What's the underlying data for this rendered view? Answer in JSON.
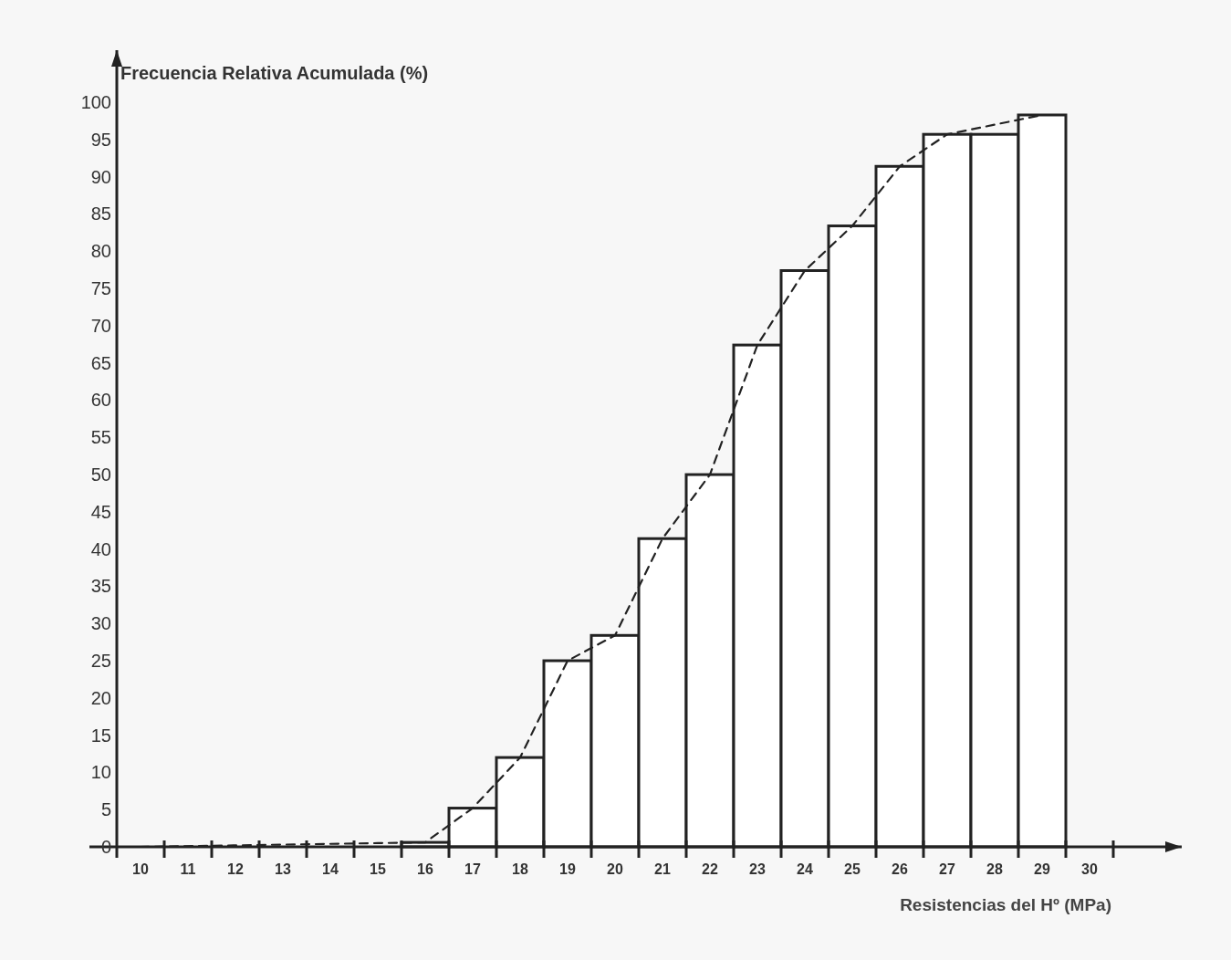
{
  "chart_data": {
    "type": "bar",
    "ylabel": "Frecuencia Relativa Acumulada (%)",
    "xlabel": "Resistencias del Hº (MPa)",
    "categories": [
      "10",
      "11",
      "12",
      "13",
      "14",
      "15",
      "16",
      "17",
      "18",
      "19",
      "20",
      "21",
      "22",
      "23",
      "24",
      "25",
      "26",
      "27",
      "28",
      "29",
      "30"
    ],
    "values": [
      null,
      null,
      null,
      null,
      null,
      null,
      0.6,
      5.2,
      12,
      25,
      28.4,
      41.4,
      50,
      67.4,
      77.4,
      83.4,
      91.4,
      95.7,
      95.7,
      98.3,
      null
    ],
    "color": "#ffffff",
    "series": [
      {
        "type": "line",
        "color": "#222222",
        "line_style": "dashed",
        "x": [
          "10",
          "15",
          "16",
          "17",
          "18",
          "19",
          "20",
          "21",
          "22",
          "23",
          "24",
          "25",
          "26",
          "27",
          "29"
        ],
        "values": [
          0,
          0.5,
          0.6,
          5.2,
          12,
          25,
          28.4,
          41.4,
          50,
          67.4,
          77.4,
          83.4,
          91.4,
          95.7,
          98.3
        ]
      }
    ],
    "ylim": [
      0,
      107
    ],
    "yticks": [
      0,
      5,
      10,
      15,
      20,
      25,
      30,
      35,
      40,
      45,
      50,
      55,
      60,
      65,
      70,
      75,
      80,
      85,
      90,
      95,
      100
    ]
  }
}
